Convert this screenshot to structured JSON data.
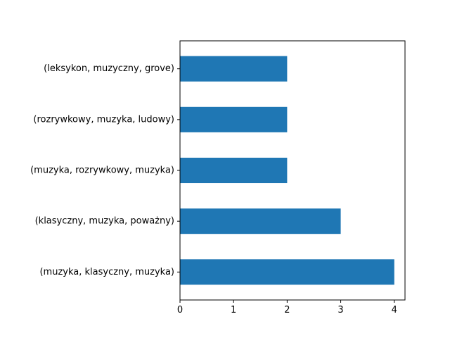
{
  "chart_data": {
    "type": "bar",
    "orientation": "horizontal",
    "categories": [
      "(muzyka, klasyczny, muzyka)",
      "(klasyczny, muzyka, poważny)",
      "(muzyka, rozrywkowy, muzyka)",
      "(rozrywkowy, muzyka, ludowy)",
      "(leksykon, muzyczny, grove)"
    ],
    "values": [
      4,
      3,
      2,
      2,
      2
    ],
    "xticks": [
      0,
      1,
      2,
      3,
      4
    ],
    "xlim": [
      0,
      4.2
    ],
    "title": "",
    "xlabel": "",
    "ylabel": "",
    "grid": false,
    "bar_color": "#1f77b4"
  }
}
